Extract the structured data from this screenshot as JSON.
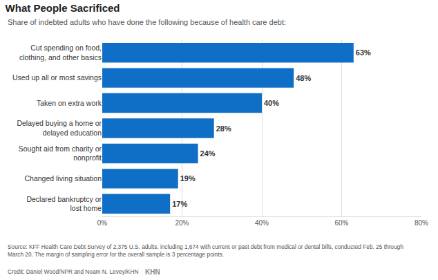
{
  "chart_data": {
    "type": "bar",
    "orientation": "horizontal",
    "title": "What People Sacrificed",
    "subtitle": "Share of indebted adults who have done the following because of health care debt:",
    "categories": [
      "Cut spending on food,\nclothing, and other basics",
      "Used up all or most savings",
      "Taken on extra work",
      "Delayed buying a home or\ndelayed education",
      "Sought aid from charity or\nnonprofit",
      "Changed living situation",
      "Declared bankruptcy or\nlost home"
    ],
    "values": [
      63,
      48,
      40,
      28,
      24,
      19,
      17
    ],
    "value_labels": [
      "63%",
      "48%",
      "40%",
      "28%",
      "24%",
      "19%",
      "17%"
    ],
    "data_labels": true,
    "color": "#0f6fc6",
    "xlim": [
      0,
      80
    ],
    "xticks": [
      {
        "value": 0,
        "label": "0%"
      },
      {
        "value": 20,
        "label": "20%"
      },
      {
        "value": 40,
        "label": "40%"
      },
      {
        "value": 60,
        "label": "60%"
      },
      {
        "value": 80,
        "label": "80%"
      }
    ],
    "grid": true,
    "annotations": [
      "Source: KFF Health Care Debt Survey of 2,375 U.S. adults, including 1,674 with current or past debt from medical or dental bills, conducted Feb. 25 through\nMarch 20. The margin of sampling error for the overall sample is 3 percentage points.",
      "Credit: Daniel Wood/NPR and Noam N. Levey/KHN",
      "KHN"
    ]
  }
}
